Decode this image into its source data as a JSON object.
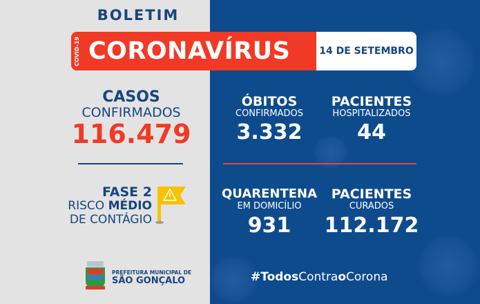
{
  "header": {
    "title": "BOLETIM",
    "tag": "COVID-19",
    "headline": "CORONAVÍRUS",
    "date": "14 DE SETEMBRO"
  },
  "casos": {
    "title": "CASOS",
    "subtitle": "CONFIRMADOS",
    "value": "116.479"
  },
  "fase": {
    "line1": "FASE 2",
    "line2a": "RISCO ",
    "line2b": "MÉDIO",
    "line3": "DE CONTÁGIO",
    "icon": "warning-flag-icon"
  },
  "obitos": {
    "title": "ÓBITOS",
    "subtitle": "CONFIRMADOS",
    "value": "3.332"
  },
  "hospitalizados": {
    "title": "PACIENTES",
    "subtitle": "HOSPITALIZADOS",
    "value": "44"
  },
  "quarentena": {
    "title": "QUARENTENA",
    "subtitle": "EM DOMICÍLIO",
    "value": "931"
  },
  "curados": {
    "title": "PACIENTES",
    "subtitle": "CURADOS",
    "value": "112.172"
  },
  "footer": {
    "org1": "PREFEITURA MUNICIPAL DE",
    "org2": "SÃO GONÇALO",
    "hashtag_a": "#Todos",
    "hashtag_b": "Contra",
    "hashtag_c": "o",
    "hashtag_d": "Corona"
  },
  "colors": {
    "red": "#f03a25",
    "blue": "#0e4b8d",
    "darkblue": "#17457f",
    "yellow": "#f7c200"
  }
}
